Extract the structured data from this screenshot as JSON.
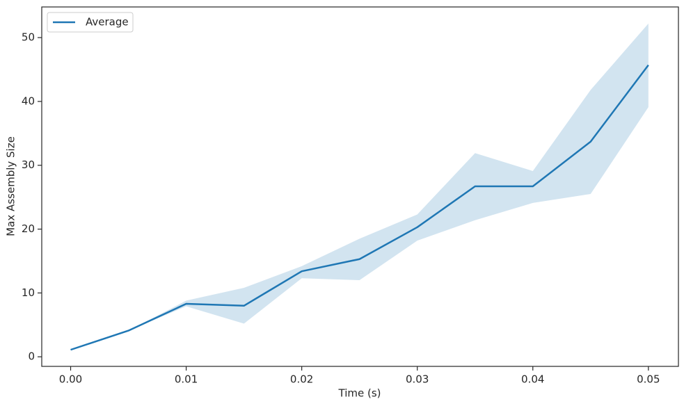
{
  "chart_data": {
    "type": "line",
    "x_label": "Time (s)",
    "y_label": "Max Assembly Size",
    "x": [
      0,
      0.005,
      0.01,
      0.015,
      0.02,
      0.025,
      0.03,
      0.035,
      0.04,
      0.045,
      0.05
    ],
    "series": [
      {
        "name": "Average",
        "color": "#1f77b4",
        "values": [
          1.1,
          4.1,
          8.3,
          8.0,
          13.4,
          15.3,
          20.3,
          26.7,
          26.7,
          33.7,
          45.7
        ]
      }
    ],
    "band": {
      "color": "#1f77b4",
      "upper": [
        1.1,
        4.1,
        8.8,
        10.8,
        14.2,
        18.5,
        22.3,
        31.9,
        29.1,
        41.8,
        52.2
      ],
      "lower": [
        1.1,
        4.1,
        7.9,
        5.2,
        12.3,
        12.0,
        18.2,
        21.4,
        24.1,
        25.5,
        39.1
      ]
    },
    "xlim": [
      -0.0025,
      0.0526
    ],
    "ylim": [
      -1.5,
      54.8
    ],
    "xticks": [
      {
        "value": 0,
        "label": "0.00"
      },
      0.01,
      0.02,
      0.03,
      0.04,
      0.05
    ],
    "yticks": [
      0,
      10,
      20,
      30,
      40,
      50
    ],
    "grid": false,
    "legend": "upper left"
  }
}
